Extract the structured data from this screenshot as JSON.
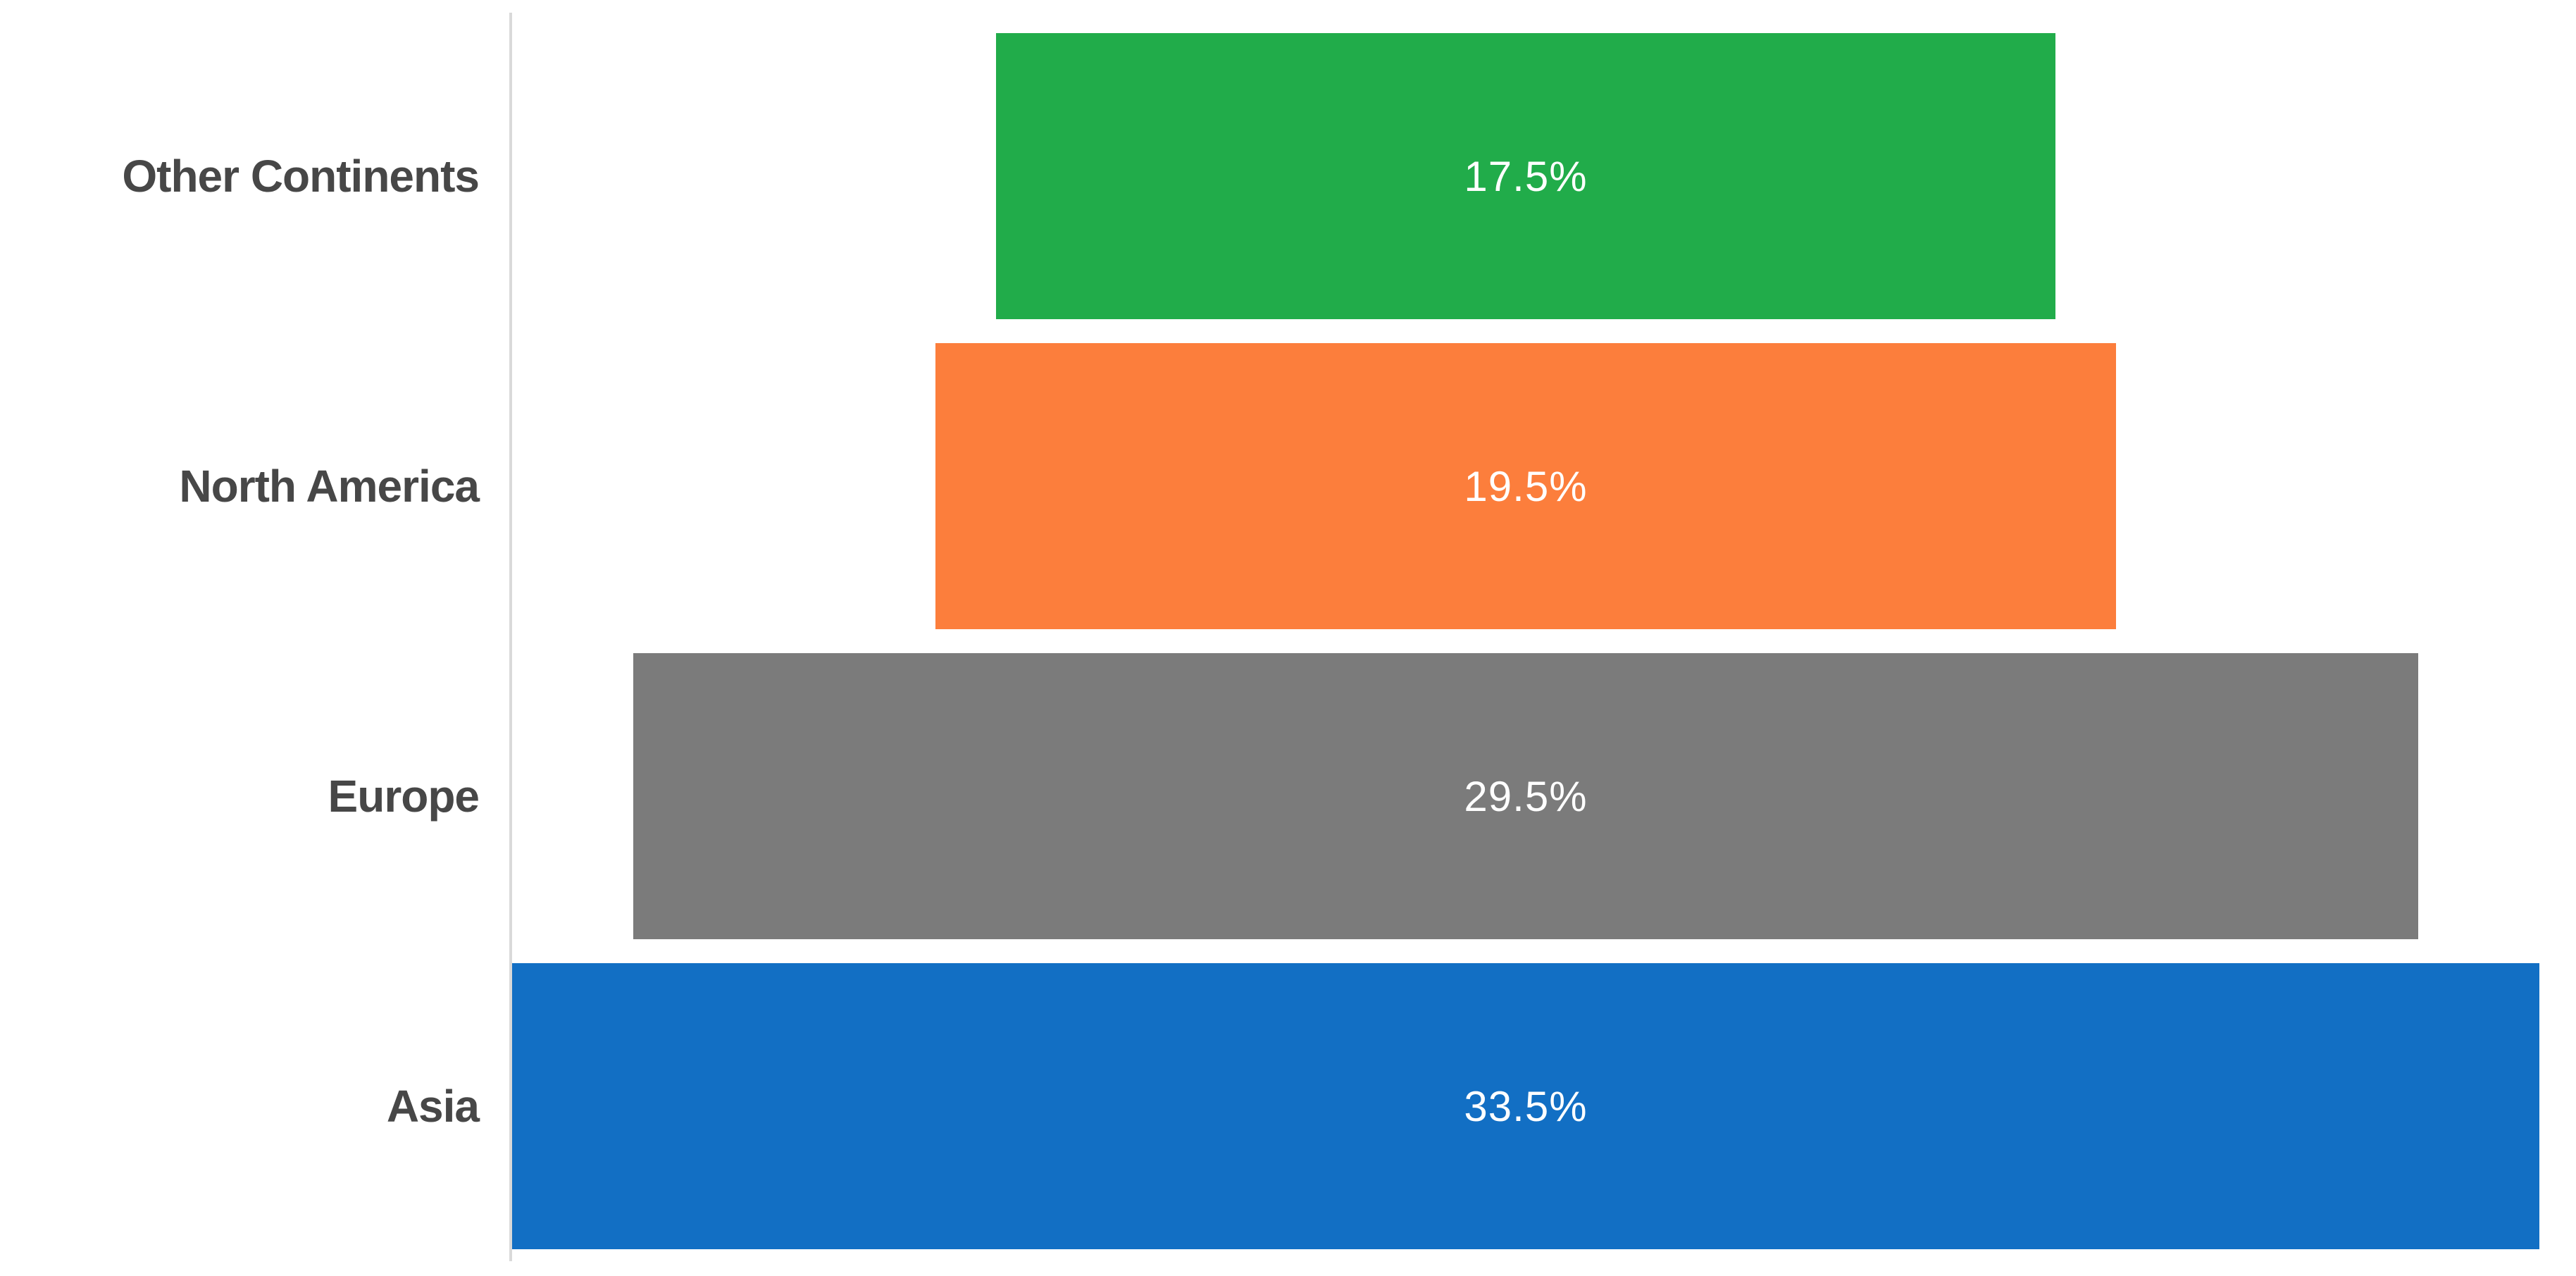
{
  "chart_data": {
    "type": "bar",
    "subtype": "horizontal-centered-funnel",
    "title": "",
    "xlabel": "",
    "ylabel": "",
    "grid": false,
    "legend": "none",
    "xlim": [
      0,
      33.5
    ],
    "categories": [
      "Other Continents",
      "North America",
      "Europe",
      "Asia"
    ],
    "values": [
      17.5,
      19.5,
      29.5,
      33.5
    ],
    "bars": [
      {
        "label": "Other Continents",
        "value": 17.5,
        "display": "17.5%",
        "color": "#21ac4a"
      },
      {
        "label": "North America",
        "value": 19.5,
        "display": "19.5%",
        "color": "#fc7e3c"
      },
      {
        "label": "Europe",
        "value": 29.5,
        "display": "29.5%",
        "color": "#7b7b7b"
      },
      {
        "label": "Asia",
        "value": 33.5,
        "display": "33.5%",
        "color": "#126fc4"
      }
    ],
    "colors": {
      "axis_line": "#d9d9d9",
      "category_label_text": "#474747",
      "bar_value_text": "#ffffff",
      "background": "#ffffff"
    }
  }
}
